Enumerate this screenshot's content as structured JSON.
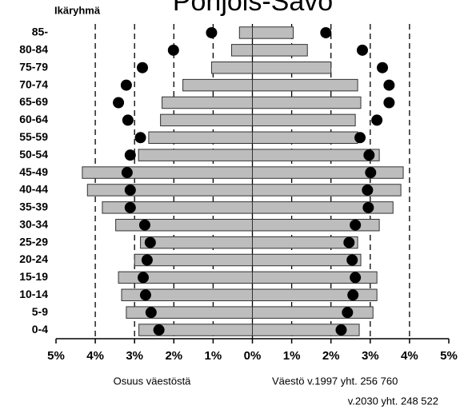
{
  "chart_data": {
    "type": "pyramid",
    "title": "Pohjois-Savo",
    "y_axis_label": "Ikäryhmä",
    "x_label_left": "Osuus väestöstä",
    "x_label_right": "Väestö v.1997 yht. 256 760",
    "x_label_right_2": "v.2030 yht. 248 522",
    "categories": [
      "85-",
      "80-84",
      "75-79",
      "70-74",
      "65-69",
      "60-64",
      "55-59",
      "50-54",
      "45-49",
      "40-44",
      "35-39",
      "30-34",
      "25-29",
      "20-24",
      "15-19",
      "10-14",
      "5-9",
      "0-4"
    ],
    "left_bars": [
      0.33,
      0.53,
      1.04,
      1.77,
      2.3,
      2.34,
      2.64,
      2.9,
      4.33,
      4.2,
      3.82,
      3.48,
      2.85,
      3.0,
      3.41,
      3.33,
      3.21,
      2.89
    ],
    "right_bars": [
      1.04,
      1.4,
      2.0,
      2.68,
      2.76,
      2.62,
      2.68,
      3.23,
      3.84,
      3.78,
      3.58,
      3.23,
      2.68,
      2.76,
      3.17,
      3.17,
      3.07,
      2.72
    ],
    "left_dots": [
      1.04,
      2.01,
      2.8,
      3.21,
      3.41,
      3.17,
      2.85,
      3.11,
      3.19,
      3.11,
      3.11,
      2.74,
      2.6,
      2.68,
      2.78,
      2.72,
      2.58,
      2.38
    ],
    "right_dots": [
      1.87,
      2.8,
      3.31,
      3.48,
      3.48,
      3.17,
      2.74,
      2.97,
      3.01,
      2.93,
      2.95,
      2.62,
      2.46,
      2.54,
      2.62,
      2.56,
      2.42,
      2.26
    ],
    "bar_color": "#bdbdbd",
    "dot_color": "#000000",
    "xlim": [
      -5,
      5
    ],
    "xticks": [
      {
        "value": -5,
        "label": "5%"
      },
      {
        "value": -4,
        "label": "4%"
      },
      {
        "value": -3,
        "label": "3%"
      },
      {
        "value": -2,
        "label": "2%"
      },
      {
        "value": -1,
        "label": "1%"
      },
      {
        "value": 0,
        "label": "0%"
      },
      {
        "value": 1,
        "label": "1%"
      },
      {
        "value": 2,
        "label": "2%"
      },
      {
        "value": 3,
        "label": "3%"
      },
      {
        "value": 4,
        "label": "4%"
      },
      {
        "value": 5,
        "label": "5%"
      }
    ],
    "grid": true
  }
}
